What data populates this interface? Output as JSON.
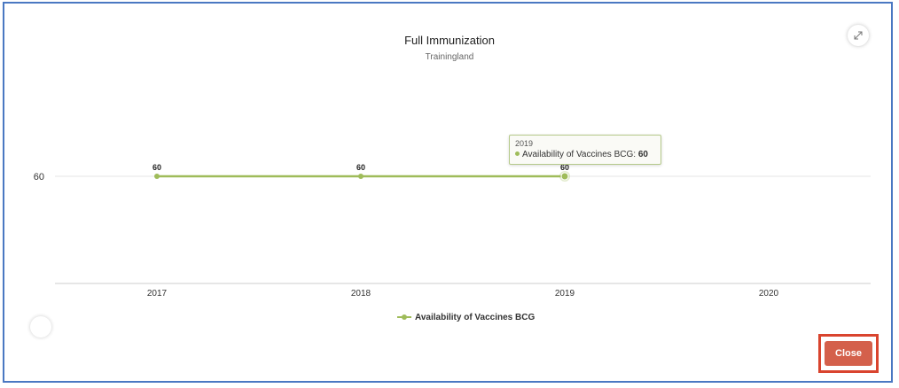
{
  "modal": {
    "close_label": "Close",
    "expand_icon": "expand-arrows-icon"
  },
  "colors": {
    "series": "#9fbc5a",
    "close_button": "#d4604b",
    "annotation_outline": "#d9442e",
    "frame": "#4a78c2"
  },
  "tooltip": {
    "x": "2019",
    "series_name": "Availability of Vaccines BCG",
    "separator": ": ",
    "value": "60"
  },
  "chart_data": {
    "type": "line",
    "title": "Full Immunization",
    "subtitle": "Trainingland",
    "xlabel": "",
    "ylabel": "",
    "categories": [
      "2017",
      "2018",
      "2019",
      "2020"
    ],
    "series": [
      {
        "name": "Availability of Vaccines BCG",
        "values": [
          60,
          60,
          60,
          null
        ],
        "data_labels": [
          "60",
          "60",
          "60",
          null
        ]
      }
    ],
    "y_ticks": [
      "60"
    ],
    "highlighted_point": "2019",
    "grid": true,
    "legend": "bottom-center"
  }
}
